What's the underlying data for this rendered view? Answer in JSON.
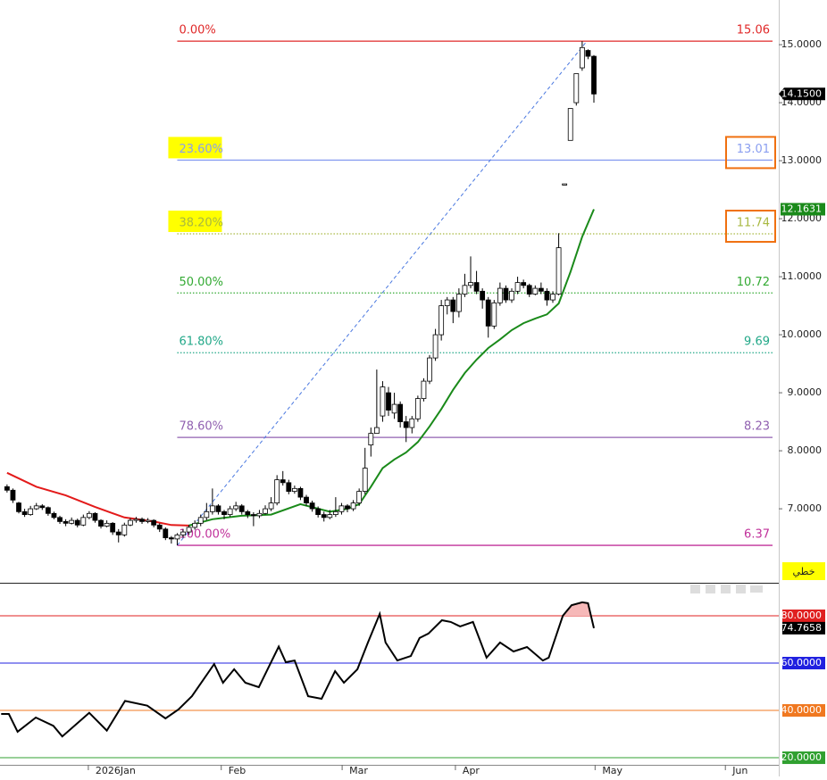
{
  "chart_data": [
    {
      "type": "candlestick",
      "xlim": [
        -1.2,
        131.5
      ],
      "ylim": [
        5.74,
        15.77
      ],
      "xticks": [
        {
          "value": 13.85,
          "label": "2026Jan"
        },
        {
          "value": 36.5,
          "label": "Feb"
        },
        {
          "value": 57.1,
          "label": "Mar"
        },
        {
          "value": 76.4,
          "label": "Apr"
        },
        {
          "value": 100.2,
          "label": "May"
        },
        {
          "value": 122.4,
          "label": "Jun"
        }
      ],
      "yticks": [
        {
          "value": 15,
          "label": "15.0000"
        },
        {
          "value": 14,
          "label": "14.0000"
        },
        {
          "value": 13,
          "label": "13.0000"
        },
        {
          "value": 12,
          "label": "12.0000"
        },
        {
          "value": 11,
          "label": "11.0000"
        },
        {
          "value": 10,
          "label": "10.0000"
        },
        {
          "value": 9,
          "label": "9.0000"
        },
        {
          "value": 8,
          "label": "8.0000"
        },
        {
          "value": 7,
          "label": "7.0000"
        }
      ],
      "ohlc": [
        [
          7.38,
          7.42,
          7.28,
          7.32
        ],
        [
          7.32,
          7.35,
          7.1,
          7.15
        ],
        [
          7.1,
          7.12,
          6.92,
          6.95
        ],
        [
          6.95,
          7.0,
          6.86,
          6.9
        ],
        [
          6.9,
          7.05,
          6.88,
          7.0
        ],
        [
          7.0,
          7.1,
          6.98,
          7.05
        ],
        [
          7.05,
          7.08,
          6.98,
          7.02
        ],
        [
          7.02,
          7.04,
          6.88,
          6.92
        ],
        [
          6.92,
          6.95,
          6.82,
          6.85
        ],
        [
          6.85,
          6.88,
          6.74,
          6.78
        ],
        [
          6.78,
          6.82,
          6.7,
          6.75
        ],
        [
          6.75,
          6.85,
          6.73,
          6.8
        ],
        [
          6.8,
          6.83,
          6.68,
          6.72
        ],
        [
          6.72,
          6.9,
          6.7,
          6.85
        ],
        [
          6.85,
          6.96,
          6.82,
          6.92
        ],
        [
          6.92,
          6.94,
          6.76,
          6.8
        ],
        [
          6.8,
          6.82,
          6.66,
          6.7
        ],
        [
          6.7,
          6.8,
          6.68,
          6.75
        ],
        [
          6.75,
          6.77,
          6.55,
          6.6
        ],
        [
          6.6,
          6.65,
          6.42,
          6.55
        ],
        [
          6.55,
          6.76,
          6.52,
          6.72
        ],
        [
          6.72,
          6.84,
          6.7,
          6.8
        ],
        [
          6.8,
          6.86,
          6.76,
          6.82
        ],
        [
          6.82,
          6.85,
          6.74,
          6.78
        ],
        [
          6.78,
          6.84,
          6.75,
          6.8
        ],
        [
          6.8,
          6.82,
          6.68,
          6.72
        ],
        [
          6.72,
          6.75,
          6.6,
          6.65
        ],
        [
          6.65,
          6.68,
          6.46,
          6.5
        ],
        [
          6.5,
          6.53,
          6.4,
          6.48
        ],
        [
          6.48,
          6.58,
          6.37,
          6.55
        ],
        [
          6.55,
          6.65,
          6.5,
          6.6
        ],
        [
          6.6,
          6.72,
          6.55,
          6.68
        ],
        [
          6.68,
          6.8,
          6.64,
          6.75
        ],
        [
          6.75,
          6.9,
          6.7,
          6.85
        ],
        [
          6.85,
          7.1,
          6.8,
          6.95
        ],
        [
          6.95,
          7.35,
          6.9,
          7.05
        ],
        [
          7.05,
          7.08,
          6.9,
          6.95
        ],
        [
          6.95,
          6.98,
          6.82,
          6.9
        ],
        [
          6.9,
          7.05,
          6.86,
          7.0
        ],
        [
          7.0,
          7.12,
          6.96,
          7.05
        ],
        [
          7.05,
          7.08,
          6.9,
          6.95
        ],
        [
          6.95,
          6.98,
          6.84,
          6.9
        ],
        [
          6.9,
          6.94,
          6.7,
          6.88
        ],
        [
          6.88,
          6.98,
          6.84,
          6.92
        ],
        [
          6.92,
          7.06,
          6.9,
          7.0
        ],
        [
          7.0,
          7.2,
          6.96,
          7.1
        ],
        [
          7.1,
          7.58,
          7.06,
          7.5
        ],
        [
          7.5,
          7.65,
          7.4,
          7.45
        ],
        [
          7.45,
          7.5,
          7.25,
          7.3
        ],
        [
          7.3,
          7.4,
          7.26,
          7.35
        ],
        [
          7.35,
          7.38,
          7.15,
          7.2
        ],
        [
          7.2,
          7.24,
          7.05,
          7.1
        ],
        [
          7.1,
          7.14,
          6.95,
          7.0
        ],
        [
          7.0,
          7.04,
          6.85,
          6.9
        ],
        [
          6.9,
          6.95,
          6.78,
          6.85
        ],
        [
          6.85,
          6.98,
          6.82,
          6.9
        ],
        [
          6.9,
          7.2,
          6.86,
          6.95
        ],
        [
          6.95,
          7.1,
          6.9,
          7.05
        ],
        [
          7.05,
          7.08,
          6.94,
          7.0
        ],
        [
          7.0,
          7.15,
          6.96,
          7.1
        ],
        [
          7.1,
          7.35,
          7.05,
          7.3
        ],
        [
          7.3,
          8.05,
          7.25,
          7.7
        ],
        [
          8.1,
          8.4,
          7.9,
          8.3
        ],
        [
          8.3,
          9.4,
          8.3,
          8.4
        ],
        [
          8.6,
          9.2,
          8.5,
          9.1
        ],
        [
          9.0,
          9.1,
          8.6,
          8.7
        ],
        [
          8.65,
          9.0,
          8.55,
          8.8
        ],
        [
          8.8,
          8.85,
          8.4,
          8.5
        ],
        [
          8.5,
          8.6,
          8.15,
          8.4
        ],
        [
          8.4,
          8.6,
          8.3,
          8.55
        ],
        [
          8.55,
          8.95,
          8.5,
          8.9
        ],
        [
          8.9,
          9.25,
          8.85,
          9.2
        ],
        [
          9.2,
          9.65,
          9.15,
          9.6
        ],
        [
          9.6,
          10.1,
          9.55,
          10.0
        ],
        [
          10.0,
          10.6,
          9.9,
          10.5
        ],
        [
          10.5,
          10.65,
          10.35,
          10.6
        ],
        [
          10.6,
          10.65,
          10.2,
          10.4
        ],
        [
          10.4,
          10.8,
          10.3,
          10.7
        ],
        [
          10.7,
          11.05,
          10.65,
          10.85
        ],
        [
          10.85,
          11.35,
          10.8,
          10.9
        ],
        [
          10.9,
          11.1,
          10.7,
          10.75
        ],
        [
          10.75,
          10.8,
          10.45,
          10.6
        ],
        [
          10.6,
          10.65,
          9.95,
          10.15
        ],
        [
          10.15,
          10.6,
          10.1,
          10.55
        ],
        [
          10.55,
          10.9,
          10.5,
          10.8
        ],
        [
          10.8,
          10.85,
          10.55,
          10.6
        ],
        [
          10.6,
          10.8,
          10.55,
          10.75
        ],
        [
          10.75,
          11.0,
          10.7,
          10.9
        ],
        [
          10.9,
          10.95,
          10.8,
          10.85
        ],
        [
          10.85,
          10.88,
          10.65,
          10.7
        ],
        [
          10.7,
          10.85,
          10.68,
          10.8
        ],
        [
          10.8,
          10.9,
          10.7,
          10.75
        ],
        [
          10.75,
          10.8,
          10.5,
          10.6
        ],
        [
          10.6,
          10.75,
          10.55,
          10.7
        ],
        [
          10.7,
          11.75,
          10.68,
          11.5
        ],
        [
          12.58,
          12.6,
          12.58,
          12.6
        ],
        [
          13.35,
          13.9,
          13.35,
          13.9
        ],
        [
          14.0,
          14.5,
          13.95,
          14.5
        ],
        [
          14.6,
          15.06,
          14.55,
          14.95
        ],
        [
          14.9,
          14.92,
          14.75,
          14.8
        ],
        [
          14.8,
          14.82,
          14.0,
          14.15
        ]
      ],
      "last_price": {
        "value": 14.15,
        "label": "14.1500"
      },
      "ma": [
        {
          "color": "#e31a1a",
          "x": [
            0,
            5,
            10,
            15,
            20,
            25,
            28,
            31
          ],
          "values": [
            7.62,
            7.38,
            7.23,
            7.03,
            6.85,
            6.78,
            6.72,
            6.71
          ]
        },
        {
          "color": "#1a8a1a",
          "x": [
            31,
            35,
            40,
            45,
            50,
            55,
            58,
            60,
            62,
            64,
            66,
            68,
            70,
            72,
            74,
            76,
            78,
            80,
            82,
            84,
            86,
            88,
            90,
            92,
            94,
            96,
            98,
            100
          ],
          "values": [
            6.71,
            6.82,
            6.88,
            6.9,
            7.08,
            6.95,
            7.0,
            7.08,
            7.38,
            7.7,
            7.85,
            7.97,
            8.15,
            8.42,
            8.72,
            9.05,
            9.34,
            9.57,
            9.77,
            9.92,
            10.08,
            10.2,
            10.28,
            10.35,
            10.54,
            11.08,
            11.69,
            12.1631
          ]
        }
      ],
      "fib_x": [
        29,
        98.8
      ],
      "fib_levels": [
        {
          "label": "0.00%",
          "value": 15.06,
          "color": "#e02828",
          "style": "solid",
          "highlight": false
        },
        {
          "label": "23.60%",
          "value": 13.01,
          "color": "#8a9ef0",
          "style": "solid",
          "highlight": true
        },
        {
          "label": "38.20%",
          "value": 11.74,
          "color": "#a8b840",
          "style": "dotted",
          "highlight": true
        },
        {
          "label": "50.00%",
          "value": 10.72,
          "color": "#33aa33",
          "style": "dotted",
          "highlight": false
        },
        {
          "label": "61.80%",
          "value": 9.69,
          "color": "#22a888",
          "style": "dotted",
          "highlight": false
        },
        {
          "label": "78.60%",
          "value": 8.23,
          "color": "#9060b0",
          "style": "solid",
          "highlight": false
        },
        {
          "label": "100.00%",
          "value": 6.37,
          "color": "#c0309a",
          "style": "solid",
          "highlight": false
        }
      ],
      "scale_mode": "خطي"
    },
    {
      "type": "line",
      "ylim": [
        17,
        93.2
      ],
      "yticks": [
        {
          "value": 80,
          "label": "80.0000",
          "color": "#e02020"
        },
        {
          "value": 60,
          "label": "60.0000",
          "color": "#2020e0"
        },
        {
          "value": 40,
          "label": "40.0000",
          "color": "#f07820"
        },
        {
          "value": 20,
          "label": "20.0000",
          "color": "#30a030"
        }
      ],
      "overbought_fill": "#f6b8b8",
      "series": [
        {
          "color": "#000000",
          "x": [
            -1,
            0.3,
            1.8,
            4.9,
            7.9,
            9.4,
            14,
            17,
            20.1,
            23.9,
            27,
            29.2,
            31.5,
            35.3,
            36.8,
            38.7,
            40.6,
            42.9,
            46.3,
            47.5,
            49,
            51.3,
            53.6,
            55.9,
            57.4,
            59.7,
            61.5,
            63.5,
            64.5,
            66.5,
            68.8,
            70.3,
            71.8,
            74.1,
            75.6,
            77.2,
            79.4,
            81.7,
            84,
            86.3,
            88.6,
            91.3,
            92.3,
            94.7,
            96.2,
            98,
            99,
            100
          ],
          "values": [
            38.5,
            38.5,
            31,
            37,
            33.5,
            29,
            39,
            31.5,
            44,
            42,
            36.6,
            40.4,
            46,
            59.6,
            51.7,
            57.4,
            51.7,
            49.8,
            67,
            60.4,
            61.1,
            46,
            44.9,
            56.6,
            51.7,
            57.4,
            68.7,
            80.8,
            68.7,
            61.1,
            63,
            70.6,
            72.5,
            78.1,
            77.4,
            75.5,
            77.4,
            62.3,
            68.7,
            64.9,
            66.8,
            61.1,
            62.3,
            80,
            84.5,
            85.7,
            85.3,
            74.7658
          ]
        }
      ]
    }
  ]
}
